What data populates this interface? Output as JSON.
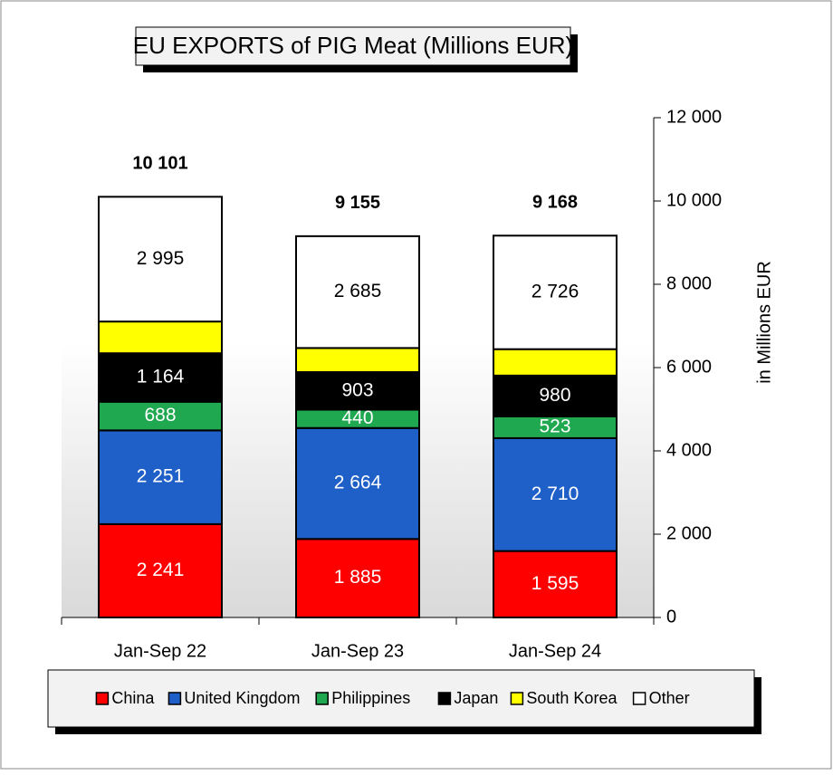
{
  "chart_data": {
    "type": "stacked-bar",
    "title": "EU EXPORTS of PIG Meat (Millions EUR)",
    "y_label": "in Millions EUR",
    "categories": [
      "Jan-Sep 22",
      "Jan-Sep 23",
      "Jan-Sep 24"
    ],
    "series": [
      {
        "name": "China",
        "color": "#ff0000",
        "values": [
          2241,
          1885,
          1595
        ],
        "value_labels": [
          "2 241",
          "1 885",
          "1 595"
        ]
      },
      {
        "name": "United Kingdom",
        "color": "#1f5fc8",
        "values": [
          2251,
          2664,
          2710
        ],
        "value_labels": [
          "2 251",
          "2 664",
          "2 710"
        ]
      },
      {
        "name": "Philippines",
        "color": "#1fa84f",
        "values": [
          688,
          440,
          523
        ],
        "value_labels": [
          "688",
          "440",
          "523"
        ]
      },
      {
        "name": "Japan",
        "color": "#000000",
        "values": [
          1164,
          903,
          980
        ],
        "value_labels": [
          "1 164",
          "903",
          "980"
        ]
      },
      {
        "name": "South Korea",
        "color": "#ffff00",
        "values": [
          762,
          578,
          634
        ]
      },
      {
        "name": "Other",
        "color": "#ffffff",
        "values": [
          2995,
          2685,
          2726
        ],
        "value_labels": [
          "2 995",
          "2 685",
          "2 726"
        ]
      }
    ],
    "totals": [
      10101,
      9155,
      9168
    ],
    "total_labels": [
      "10 101",
      "9 155",
      "9 168"
    ],
    "ylim": [
      0,
      12000
    ],
    "yticks": [
      0,
      {
        "value": 2000,
        "label": "2 000"
      },
      {
        "value": 4000,
        "label": "4 000"
      },
      {
        "value": 6000,
        "label": "6 000"
      },
      {
        "value": 8000,
        "label": "8 000"
      },
      {
        "value": 10000,
        "label": "10 000"
      },
      {
        "value": 12000,
        "label": "12 000"
      }
    ]
  }
}
